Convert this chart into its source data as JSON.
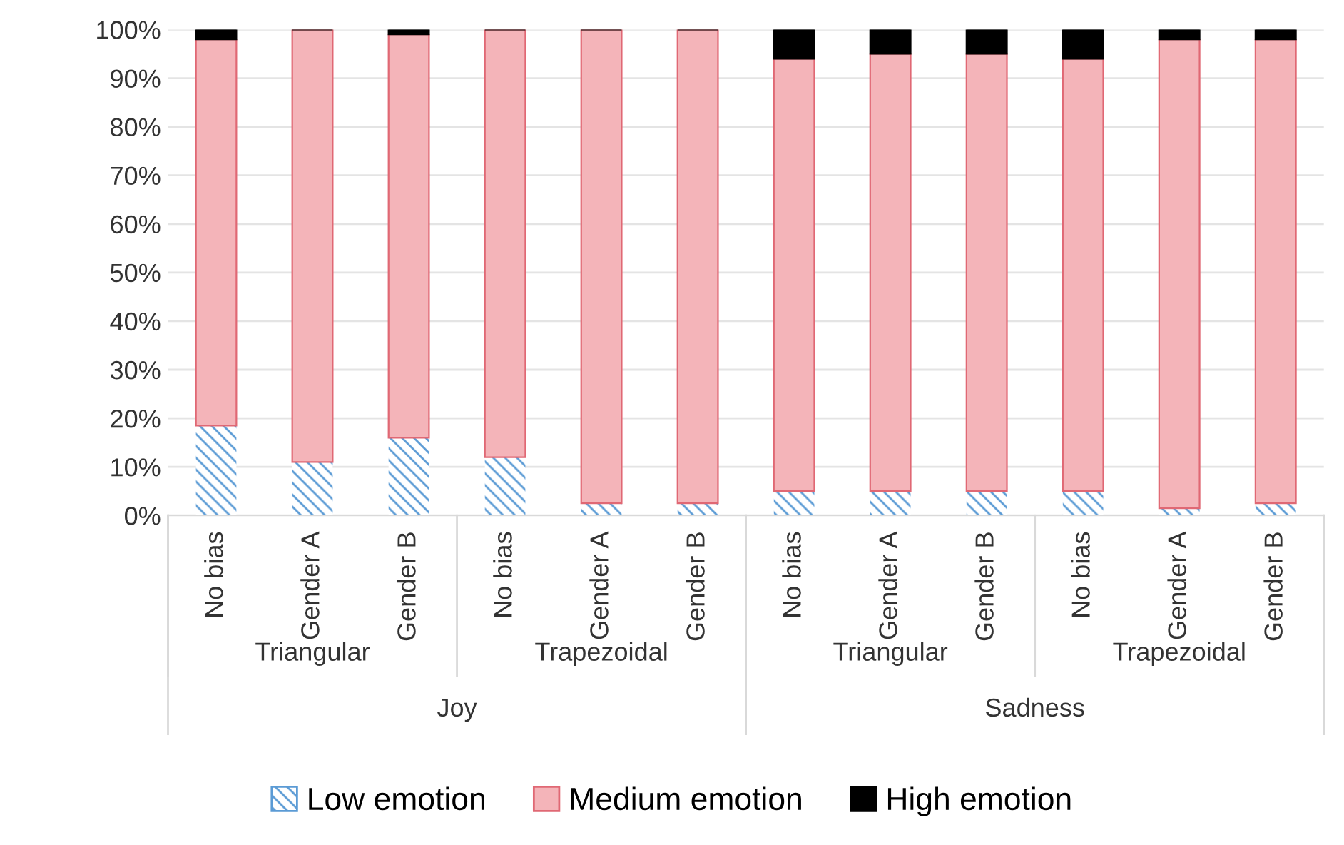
{
  "chart_data": {
    "type": "bar",
    "stacked": true,
    "categories": [
      "No bias",
      "Gender A",
      "Gender B",
      "No bias",
      "Gender A",
      "Gender B",
      "No bias",
      "Gender A",
      "Gender B",
      "No bias",
      "Gender A",
      "Gender B"
    ],
    "series": [
      {
        "name": "Low emotion",
        "color": "#5b9bd5",
        "values": [
          18.5,
          11,
          16,
          12,
          2.5,
          2.5,
          5,
          5,
          5,
          5,
          1.5,
          2.5
        ]
      },
      {
        "name": "Medium emotion",
        "color": "#f4b4b9",
        "values": [
          79.5,
          89,
          83,
          88,
          97.5,
          97.5,
          89,
          90,
          90,
          89,
          96.5,
          95.5
        ]
      },
      {
        "name": "High emotion",
        "color": "#000000",
        "values": [
          2,
          0,
          1,
          0,
          0,
          0,
          6,
          5,
          5,
          6,
          2,
          2
        ]
      }
    ],
    "ylim": [
      0,
      100
    ],
    "yticks": [
      {
        "value": 0,
        "label": "0%"
      },
      {
        "value": 10,
        "label": "10%"
      },
      {
        "value": 20,
        "label": "20%"
      },
      {
        "value": 30,
        "label": "30%"
      },
      {
        "value": 40,
        "label": "40%"
      },
      {
        "value": 50,
        "label": "50%"
      },
      {
        "value": 60,
        "label": "60%"
      },
      {
        "value": 70,
        "label": "70%"
      },
      {
        "value": 80,
        "label": "80%"
      },
      {
        "value": 90,
        "label": "90%"
      },
      {
        "value": 100,
        "label": "100%"
      }
    ],
    "annotations": [
      "Triangular",
      "Trapezoidal",
      "Triangular",
      "Trapezoidal",
      "Joy",
      "Sadness"
    ],
    "grid": "y",
    "legend": "bottom"
  }
}
